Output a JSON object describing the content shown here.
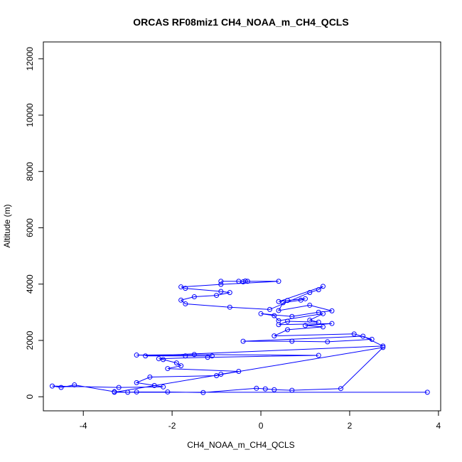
{
  "chart_data": {
    "type": "scatter",
    "title": "ORCAS RF08miz1 CH4_NOAA_m_CH4_QCLS",
    "xlabel": "CH4_NOAA_m_CH4_QCLS",
    "ylabel": "Altitude (m)",
    "xlim": [
      -4.9,
      4.05
    ],
    "ylim": [
      -500,
      12600
    ],
    "xticks": [
      -4,
      -2,
      0,
      2,
      4
    ],
    "yticks": [
      0,
      2000,
      4000,
      6000,
      8000,
      10000,
      12000
    ],
    "xtick_labels": [
      "-4",
      "-2",
      "0",
      "2",
      "4"
    ],
    "ytick_labels": [
      "0",
      "2000",
      "4000",
      "6000",
      "8000",
      "10000",
      "12000"
    ],
    "grid": false,
    "color": "#0000ff",
    "connected": true,
    "marker": "open-circle",
    "series": [
      {
        "x": [
          -0.9,
          -0.5,
          -0.4,
          -0.35,
          -0.3,
          0.4,
          -0.9,
          -1.8,
          -1.7,
          -0.9,
          -0.7,
          -1.0,
          -1.5,
          -1.8,
          -1.7,
          -0.7,
          0.2,
          1.1,
          1.3,
          1.4,
          0.4,
          0.6,
          1.0,
          0.9,
          0.5,
          0.4,
          1.1,
          1.6,
          1.3,
          0.7,
          0.0,
          0.3,
          0.4,
          1.4,
          1.1,
          1.3,
          0.6,
          0.4,
          1.6,
          1.0,
          1.4,
          0.6,
          0.3,
          2.1,
          2.5,
          1.5,
          0.7,
          -0.4,
          2.3,
          2.75,
          -2.6,
          -1.7,
          -1.1,
          -2.8,
          -1.5,
          1.3,
          -1.2,
          -2.3,
          -2.2,
          -1.9,
          -1.8,
          -2.1,
          -0.5,
          -0.9,
          -1.0,
          -2.5,
          -2.8,
          -2.4,
          -2.2,
          -3.2,
          -4.7,
          -4.5,
          -4.2,
          -3.3,
          -3.0,
          -2.8,
          -2.1,
          -1.3,
          -0.1,
          0.1,
          0.3,
          0.7,
          1.8,
          2.75,
          -3.3,
          3.75
        ],
        "y": [
          4100,
          4100,
          4080,
          4110,
          4100,
          4100,
          3990,
          3900,
          3850,
          3740,
          3700,
          3600,
          3550,
          3430,
          3300,
          3180,
          3100,
          3700,
          3800,
          3920,
          3380,
          3420,
          3480,
          3430,
          3340,
          3060,
          3250,
          3050,
          3000,
          2850,
          2950,
          2880,
          2700,
          2950,
          2720,
          2650,
          2680,
          2560,
          2600,
          2530,
          2480,
          2380,
          2160,
          2230,
          2040,
          1950,
          1970,
          1970,
          2150,
          1800,
          1450,
          1450,
          1450,
          1480,
          1500,
          1470,
          1400,
          1350,
          1320,
          1200,
          1100,
          1000,
          900,
          800,
          750,
          700,
          500,
          400,
          350,
          330,
          380,
          330,
          420,
          180,
          160,
          170,
          170,
          150,
          300,
          280,
          250,
          230,
          290,
          1750,
          160,
          160
        ]
      }
    ]
  }
}
